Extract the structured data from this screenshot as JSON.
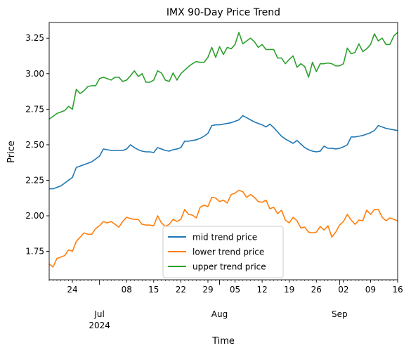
{
  "chart_data": {
    "type": "line",
    "title": "IMX 90-Day Price Trend",
    "xlabel": "Time",
    "ylabel": "Price",
    "x_range": [
      "2024-06-18",
      "2024-09-16"
    ],
    "ylim": [
      1.55,
      3.36
    ],
    "grid": false,
    "legend_position": "lower center",
    "y_ticks": [
      {
        "value": 1.75,
        "label": "1.75"
      },
      {
        "value": 2.0,
        "label": "2.00"
      },
      {
        "value": 2.25,
        "label": "2.25"
      },
      {
        "value": 2.5,
        "label": "2.50"
      },
      {
        "value": 2.75,
        "label": "2.75"
      },
      {
        "value": 3.0,
        "label": "3.00"
      },
      {
        "value": 3.25,
        "label": "3.25"
      }
    ],
    "x_minor_tick_labels": [
      {
        "date": "2024-06-24",
        "label": "24"
      },
      {
        "date": "2024-07-08",
        "label": "08"
      },
      {
        "date": "2024-07-15",
        "label": "15"
      },
      {
        "date": "2024-07-22",
        "label": "22"
      },
      {
        "date": "2024-07-29",
        "label": "29"
      },
      {
        "date": "2024-08-05",
        "label": "05"
      },
      {
        "date": "2024-08-12",
        "label": "12"
      },
      {
        "date": "2024-08-19",
        "label": "19"
      },
      {
        "date": "2024-08-26",
        "label": "26"
      },
      {
        "date": "2024-09-02",
        "label": "02"
      },
      {
        "date": "2024-09-09",
        "label": "09"
      },
      {
        "date": "2024-09-16",
        "label": "16"
      }
    ],
    "x_month_labels": [
      {
        "date": "2024-07-01",
        "label": "Jul",
        "year": "2024"
      },
      {
        "date": "2024-08-01",
        "label": "Aug",
        "year": ""
      },
      {
        "date": "2024-09-01",
        "label": "Sep",
        "year": ""
      }
    ],
    "start_date": "2024-06-18",
    "series": [
      {
        "name": "mid trend price",
        "color": "#1f77b4",
        "values": [
          2.19,
          2.19,
          2.2,
          2.21,
          2.23,
          2.25,
          2.27,
          2.34,
          2.35,
          2.36,
          2.37,
          2.38,
          2.4,
          2.42,
          2.47,
          2.465,
          2.46,
          2.46,
          2.46,
          2.46,
          2.47,
          2.5,
          2.48,
          2.465,
          2.455,
          2.45,
          2.45,
          2.445,
          2.48,
          2.47,
          2.46,
          2.455,
          2.465,
          2.47,
          2.48,
          2.525,
          2.525,
          2.53,
          2.535,
          2.545,
          2.56,
          2.58,
          2.635,
          2.64,
          2.64,
          2.645,
          2.65,
          2.655,
          2.665,
          2.675,
          2.705,
          2.69,
          2.675,
          2.66,
          2.65,
          2.64,
          2.625,
          2.645,
          2.62,
          2.59,
          2.56,
          2.54,
          2.525,
          2.51,
          2.53,
          2.505,
          2.48,
          2.465,
          2.455,
          2.45,
          2.455,
          2.49,
          2.475,
          2.475,
          2.47,
          2.475,
          2.485,
          2.5,
          2.555,
          2.555,
          2.56,
          2.565,
          2.575,
          2.585,
          2.6,
          2.635,
          2.625,
          2.615,
          2.61,
          2.605,
          2.6
        ]
      },
      {
        "name": "lower trend price",
        "color": "#ff7f0e",
        "values": [
          1.66,
          1.64,
          1.7,
          1.71,
          1.72,
          1.76,
          1.75,
          1.82,
          1.85,
          1.88,
          1.87,
          1.87,
          1.91,
          1.93,
          1.96,
          1.95,
          1.96,
          1.94,
          1.92,
          1.96,
          1.99,
          1.98,
          1.975,
          1.975,
          1.94,
          1.935,
          1.935,
          1.93,
          2.0,
          1.95,
          1.925,
          1.94,
          1.975,
          1.96,
          1.975,
          2.045,
          2.01,
          2.005,
          1.985,
          2.06,
          2.075,
          2.065,
          2.13,
          2.125,
          2.1,
          2.11,
          2.09,
          2.15,
          2.16,
          2.18,
          2.17,
          2.13,
          2.15,
          2.13,
          2.1,
          2.095,
          2.11,
          2.05,
          2.06,
          2.015,
          2.04,
          1.97,
          1.95,
          1.99,
          1.965,
          1.915,
          1.92,
          1.885,
          1.88,
          1.885,
          1.925,
          1.9,
          1.93,
          1.85,
          1.885,
          1.935,
          1.96,
          2.01,
          1.97,
          1.94,
          1.97,
          1.965,
          2.04,
          2.01,
          2.045,
          2.045,
          1.99,
          1.965,
          1.985,
          1.975,
          1.965
        ]
      },
      {
        "name": "upper trend price",
        "color": "#2ca02c",
        "values": [
          2.68,
          2.7,
          2.72,
          2.73,
          2.74,
          2.77,
          2.75,
          2.89,
          2.86,
          2.88,
          2.91,
          2.915,
          2.915,
          2.965,
          2.975,
          2.965,
          2.955,
          2.975,
          2.975,
          2.945,
          2.955,
          2.985,
          3.02,
          2.98,
          3.0,
          2.94,
          2.94,
          2.955,
          3.02,
          3.005,
          2.955,
          2.945,
          3.005,
          2.955,
          3.0,
          3.025,
          3.05,
          3.07,
          3.085,
          3.08,
          3.08,
          3.115,
          3.185,
          3.115,
          3.19,
          3.135,
          3.185,
          3.175,
          3.205,
          3.29,
          3.21,
          3.23,
          3.25,
          3.225,
          3.185,
          3.205,
          3.17,
          3.17,
          3.17,
          3.11,
          3.11,
          3.07,
          3.1,
          3.125,
          3.045,
          3.07,
          3.05,
          2.975,
          3.08,
          3.015,
          3.07,
          3.07,
          3.075,
          3.07,
          3.055,
          3.055,
          3.07,
          3.18,
          3.14,
          3.15,
          3.21,
          3.155,
          3.175,
          3.205,
          3.28,
          3.23,
          3.25,
          3.205,
          3.205,
          3.265,
          3.29
        ]
      }
    ]
  }
}
